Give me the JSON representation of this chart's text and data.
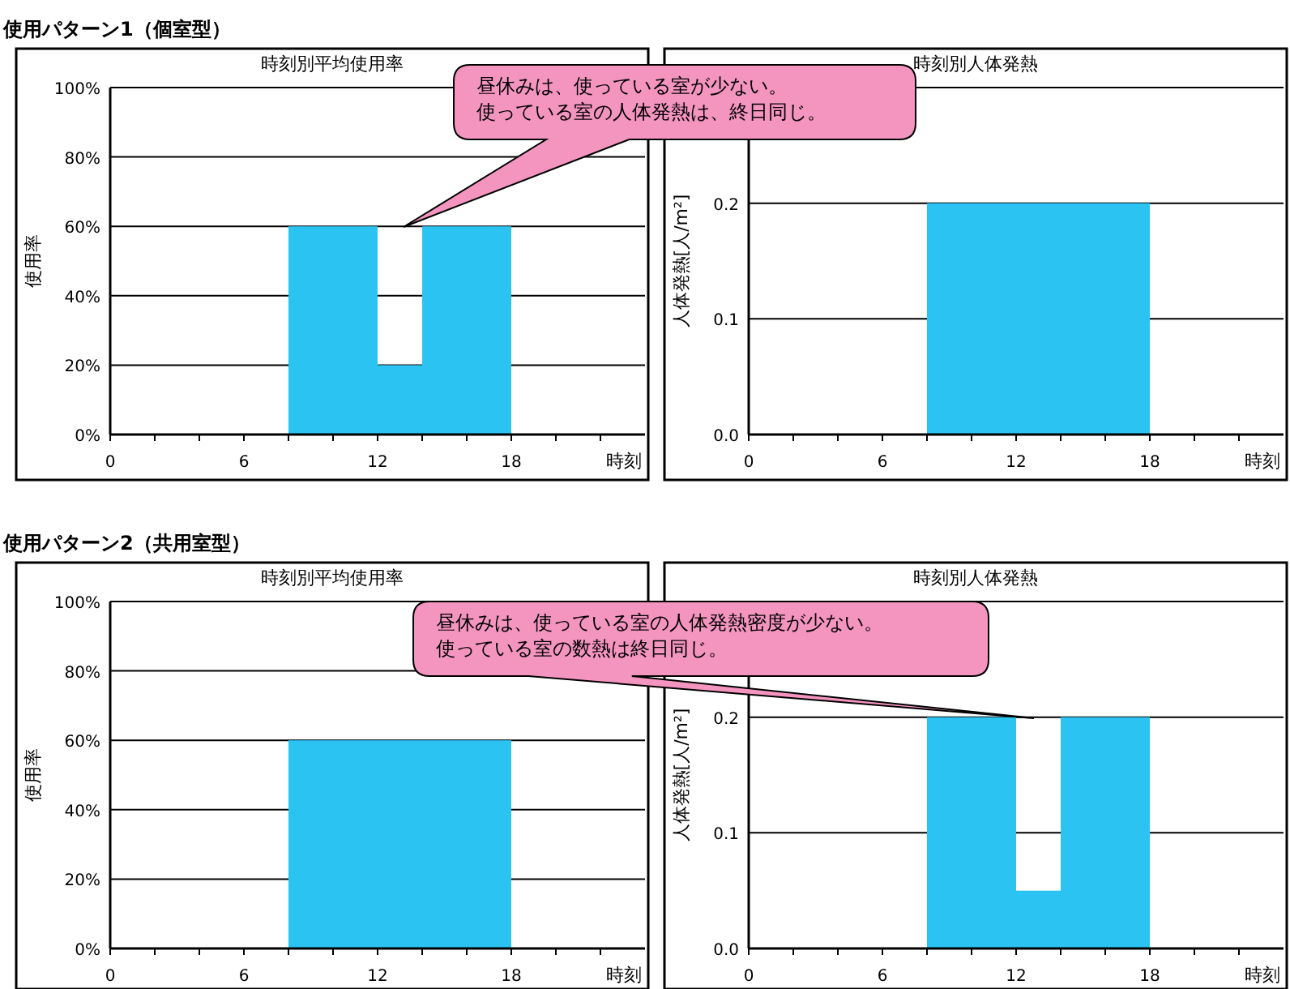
{
  "chart_data": [
    {
      "type": "histogram",
      "title": "時刻別平均使用率",
      "xlabel": "時刻",
      "ylabel": "使用率",
      "bins": [
        8,
        12,
        14,
        18
      ],
      "values": [
        60,
        20,
        60
      ],
      "color": "#2bc4f2",
      "xlim": [
        0,
        24
      ],
      "xticks": [
        0,
        {
          "value": 2,
          "label": null
        },
        {
          "value": 4,
          "label": null
        },
        6,
        {
          "value": 8,
          "label": null
        },
        {
          "value": 10,
          "label": null
        },
        12,
        {
          "value": 14,
          "label": null
        },
        {
          "value": 16,
          "label": null
        },
        18,
        {
          "value": 20,
          "label": null
        },
        {
          "value": 22,
          "label": null
        }
      ],
      "ylim": [
        0,
        100
      ],
      "yticks": [
        {
          "value": 0,
          "label": "0%"
        },
        {
          "value": 20,
          "label": "20%"
        },
        {
          "value": 40,
          "label": "40%"
        },
        {
          "value": 60,
          "label": "60%"
        },
        {
          "value": 80,
          "label": "80%"
        },
        {
          "value": 100,
          "label": "100%"
        }
      ],
      "grid": "y",
      "annotations": [
        "使用パターン1（個室型）",
        "昼休みは、使っている室が少ない。",
        "使っている室の人体発熱は、終日同じ。"
      ]
    },
    {
      "type": "histogram",
      "title": "時刻別人体発熱",
      "xlabel": "時刻",
      "ylabel": "人体発熱[人/m²]",
      "bins": [
        8,
        18
      ],
      "values": [
        0.2
      ],
      "color": "#2bc4f2",
      "xlim": [
        0,
        24
      ],
      "xticks": [
        0,
        {
          "value": 2,
          "label": null
        },
        {
          "value": 4,
          "label": null
        },
        6,
        {
          "value": 8,
          "label": null
        },
        {
          "value": 10,
          "label": null
        },
        12,
        {
          "value": 14,
          "label": null
        },
        {
          "value": 16,
          "label": null
        },
        18,
        {
          "value": 20,
          "label": null
        },
        {
          "value": 22,
          "label": null
        }
      ],
      "ylim": [
        0,
        0.3
      ],
      "yticks": [
        {
          "value": 0,
          "label": "0.0"
        },
        {
          "value": 0.1,
          "label": "0.1"
        },
        {
          "value": 0.2,
          "label": "0.2"
        }
      ],
      "grid": "y"
    },
    {
      "type": "histogram",
      "title": "時刻別平均使用率",
      "xlabel": "時刻",
      "ylabel": "使用率",
      "bins": [
        8,
        18
      ],
      "values": [
        60
      ],
      "color": "#2bc4f2",
      "xlim": [
        0,
        24
      ],
      "xticks": [
        0,
        {
          "value": 2,
          "label": null
        },
        {
          "value": 4,
          "label": null
        },
        6,
        {
          "value": 8,
          "label": null
        },
        {
          "value": 10,
          "label": null
        },
        12,
        {
          "value": 14,
          "label": null
        },
        {
          "value": 16,
          "label": null
        },
        18,
        {
          "value": 20,
          "label": null
        },
        {
          "value": 22,
          "label": null
        }
      ],
      "ylim": [
        0,
        100
      ],
      "yticks": [
        {
          "value": 0,
          "label": "0%"
        },
        {
          "value": 20,
          "label": "20%"
        },
        {
          "value": 40,
          "label": "40%"
        },
        {
          "value": 60,
          "label": "60%"
        },
        {
          "value": 80,
          "label": "80%"
        },
        {
          "value": 100,
          "label": "100%"
        }
      ],
      "grid": "y",
      "annotations": [
        "使用パターン2（共用室型）"
      ]
    },
    {
      "type": "histogram",
      "title": "時刻別人体発熱",
      "xlabel": "時刻",
      "ylabel": "人体発熱[人/m²]",
      "bins": [
        8,
        12,
        14,
        18
      ],
      "values": [
        0.2,
        0.05,
        0.2
      ],
      "color": "#2bc4f2",
      "xlim": [
        0,
        24
      ],
      "xticks": [
        0,
        {
          "value": 2,
          "label": null
        },
        {
          "value": 4,
          "label": null
        },
        6,
        {
          "value": 8,
          "label": null
        },
        {
          "value": 10,
          "label": null
        },
        12,
        {
          "value": 14,
          "label": null
        },
        {
          "value": 16,
          "label": null
        },
        18,
        {
          "value": 20,
          "label": null
        },
        {
          "value": 22,
          "label": null
        }
      ],
      "ylim": [
        0,
        0.3
      ],
      "yticks": [
        {
          "value": 0,
          "label": "0.0"
        },
        {
          "value": 0.1,
          "label": "0.1"
        },
        {
          "value": 0.2,
          "label": "0.2"
        }
      ],
      "grid": "y",
      "annotations": [
        "昼休みは、使っている室の人体発熱密度が少ない。",
        "使っている室の数熱は終日同じ。"
      ]
    }
  ]
}
